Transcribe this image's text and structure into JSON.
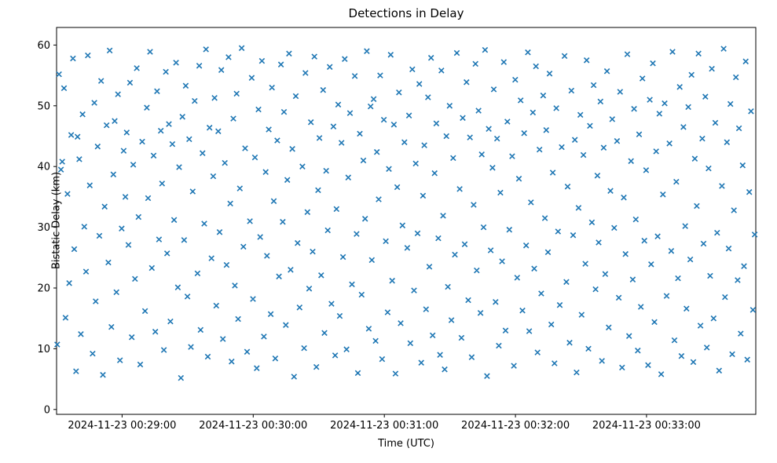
{
  "chart_data": {
    "type": "scatter",
    "title": "Detections in Delay",
    "xlabel": "Time (UTC)",
    "ylabel": "Bistatic Delay (km)",
    "marker": "x",
    "marker_color": "#1f77b4",
    "x_start_time": "2024-11-23 00:28:30",
    "x_range_s": [
      0,
      320
    ],
    "x_tick_offsets_s": [
      30,
      90,
      150,
      210,
      270
    ],
    "x_tick_labels": [
      "2024-11-23 00:29:00",
      "2024-11-23 00:30:00",
      "2024-11-23 00:31:00",
      "2024-11-23 00:32:00",
      "2024-11-23 00:33:00"
    ],
    "ylim": [
      -0.8,
      62.9
    ],
    "yticks": [
      0,
      10,
      20,
      30,
      40,
      50,
      60
    ],
    "points": [
      [
        0.3,
        10.7
      ],
      [
        1.1,
        55.2
      ],
      [
        2.0,
        39.5
      ],
      [
        2.6,
        40.8
      ],
      [
        3.4,
        52.9
      ],
      [
        4.1,
        15.1
      ],
      [
        5.0,
        35.5
      ],
      [
        5.8,
        20.8
      ],
      [
        6.7,
        45.2
      ],
      [
        7.5,
        57.8
      ],
      [
        8.1,
        26.4
      ],
      [
        8.9,
        6.3
      ],
      [
        9.6,
        44.9
      ],
      [
        10.4,
        41.2
      ],
      [
        11.1,
        12.4
      ],
      [
        11.9,
        48.6
      ],
      [
        12.7,
        30.1
      ],
      [
        13.5,
        22.7
      ],
      [
        14.3,
        58.3
      ],
      [
        15.2,
        36.9
      ],
      [
        16.5,
        9.2
      ],
      [
        17.3,
        50.5
      ],
      [
        17.9,
        17.8
      ],
      [
        18.8,
        43.3
      ],
      [
        19.6,
        28.6
      ],
      [
        20.4,
        54.1
      ],
      [
        21.2,
        5.7
      ],
      [
        22.0,
        33.4
      ],
      [
        22.9,
        46.8
      ],
      [
        23.7,
        24.2
      ],
      [
        24.3,
        59.1
      ],
      [
        25.1,
        13.6
      ],
      [
        26.0,
        38.7
      ],
      [
        26.6,
        47.5
      ],
      [
        27.4,
        19.3
      ],
      [
        28.1,
        51.9
      ],
      [
        29.0,
        8.1
      ],
      [
        29.8,
        29.8
      ],
      [
        30.7,
        42.6
      ],
      [
        31.5,
        35.0
      ],
      [
        32.1,
        45.6
      ],
      [
        32.9,
        27.1
      ],
      [
        33.6,
        53.8
      ],
      [
        34.4,
        11.9
      ],
      [
        35.1,
        40.3
      ],
      [
        35.9,
        21.5
      ],
      [
        36.7,
        56.2
      ],
      [
        37.5,
        31.7
      ],
      [
        38.3,
        7.4
      ],
      [
        39.2,
        44.1
      ],
      [
        40.5,
        16.2
      ],
      [
        41.3,
        49.7
      ],
      [
        41.9,
        34.8
      ],
      [
        42.8,
        58.9
      ],
      [
        43.6,
        23.3
      ],
      [
        44.4,
        41.8
      ],
      [
        45.2,
        12.8
      ],
      [
        46.0,
        52.4
      ],
      [
        46.9,
        28.0
      ],
      [
        47.7,
        45.9
      ],
      [
        48.3,
        37.2
      ],
      [
        49.1,
        9.8
      ],
      [
        50.0,
        55.6
      ],
      [
        50.6,
        25.7
      ],
      [
        51.4,
        47.0
      ],
      [
        52.1,
        14.5
      ],
      [
        53.0,
        43.7
      ],
      [
        53.8,
        31.2
      ],
      [
        54.7,
        57.1
      ],
      [
        55.5,
        20.1
      ],
      [
        56.1,
        39.9
      ],
      [
        56.9,
        5.2
      ],
      [
        57.6,
        48.2
      ],
      [
        58.4,
        27.9
      ],
      [
        59.1,
        53.3
      ],
      [
        59.9,
        18.6
      ],
      [
        60.7,
        44.5
      ],
      [
        61.5,
        10.3
      ],
      [
        62.3,
        35.9
      ],
      [
        63.2,
        50.8
      ],
      [
        64.5,
        22.4
      ],
      [
        65.3,
        56.6
      ],
      [
        65.9,
        13.1
      ],
      [
        66.8,
        42.2
      ],
      [
        67.6,
        30.6
      ],
      [
        68.4,
        59.3
      ],
      [
        69.2,
        8.7
      ],
      [
        70.0,
        46.4
      ],
      [
        70.9,
        24.9
      ],
      [
        71.7,
        38.4
      ],
      [
        72.3,
        51.3
      ],
      [
        73.1,
        17.1
      ],
      [
        74.0,
        45.8
      ],
      [
        74.6,
        29.2
      ],
      [
        75.4,
        55.9
      ],
      [
        76.1,
        11.6
      ],
      [
        77.0,
        40.6
      ],
      [
        77.8,
        23.8
      ],
      [
        78.7,
        58.0
      ],
      [
        79.5,
        33.9
      ],
      [
        80.1,
        7.9
      ],
      [
        80.9,
        47.9
      ],
      [
        81.6,
        20.4
      ],
      [
        82.4,
        52.0
      ],
      [
        83.1,
        14.9
      ],
      [
        83.9,
        36.4
      ],
      [
        84.7,
        59.5
      ],
      [
        85.5,
        26.8
      ],
      [
        86.3,
        43.0
      ],
      [
        87.2,
        9.5
      ],
      [
        88.5,
        31.0
      ],
      [
        89.3,
        54.6
      ],
      [
        89.9,
        18.2
      ],
      [
        90.8,
        41.5
      ],
      [
        91.6,
        6.8
      ],
      [
        92.4,
        49.4
      ],
      [
        93.2,
        28.4
      ],
      [
        94.0,
        57.4
      ],
      [
        94.9,
        12.0
      ],
      [
        95.7,
        39.1
      ],
      [
        96.3,
        25.3
      ],
      [
        97.1,
        46.1
      ],
      [
        98.0,
        15.7
      ],
      [
        98.6,
        53.0
      ],
      [
        99.4,
        34.3
      ],
      [
        100.1,
        8.4
      ],
      [
        101.0,
        44.3
      ],
      [
        101.8,
        21.9
      ],
      [
        102.7,
        56.8
      ],
      [
        103.5,
        30.9
      ],
      [
        104.1,
        49.0
      ],
      [
        104.9,
        13.9
      ],
      [
        105.6,
        37.8
      ],
      [
        106.4,
        58.6
      ],
      [
        107.1,
        23.0
      ],
      [
        107.9,
        42.9
      ],
      [
        108.7,
        5.4
      ],
      [
        109.5,
        51.6
      ],
      [
        110.3,
        27.4
      ],
      [
        111.2,
        16.8
      ],
      [
        112.5,
        40.0
      ],
      [
        113.3,
        10.1
      ],
      [
        113.9,
        55.4
      ],
      [
        114.8,
        32.5
      ],
      [
        115.6,
        19.9
      ],
      [
        116.4,
        47.3
      ],
      [
        117.2,
        26.0
      ],
      [
        118.0,
        58.1
      ],
      [
        118.9,
        7.0
      ],
      [
        119.7,
        36.1
      ],
      [
        120.3,
        44.7
      ],
      [
        121.1,
        22.1
      ],
      [
        122.0,
        52.6
      ],
      [
        122.6,
        12.6
      ],
      [
        123.4,
        39.3
      ],
      [
        124.1,
        29.5
      ],
      [
        125.0,
        56.4
      ],
      [
        125.8,
        17.4
      ],
      [
        126.7,
        46.6
      ],
      [
        127.5,
        8.9
      ],
      [
        128.1,
        33.0
      ],
      [
        128.9,
        50.2
      ],
      [
        129.6,
        15.4
      ],
      [
        130.4,
        43.9
      ],
      [
        131.1,
        25.1
      ],
      [
        131.9,
        57.7
      ],
      [
        132.7,
        9.9
      ],
      [
        133.5,
        38.2
      ],
      [
        134.3,
        48.8
      ],
      [
        135.2,
        20.6
      ],
      [
        136.5,
        54.9
      ],
      [
        137.3,
        28.9
      ],
      [
        137.9,
        6.0
      ],
      [
        138.8,
        45.4
      ],
      [
        139.6,
        18.9
      ],
      [
        140.4,
        41.0
      ],
      [
        141.2,
        31.4
      ],
      [
        142.0,
        59.0
      ],
      [
        142.9,
        13.3
      ],
      [
        143.7,
        49.9
      ],
      [
        144.3,
        24.6
      ],
      [
        145.1,
        51.1
      ],
      [
        146.0,
        11.3
      ],
      [
        146.6,
        42.4
      ],
      [
        147.4,
        34.6
      ],
      [
        148.1,
        55.0
      ],
      [
        149.0,
        8.3
      ],
      [
        149.8,
        47.7
      ],
      [
        150.7,
        27.7
      ],
      [
        151.5,
        16.0
      ],
      [
        152.1,
        39.6
      ],
      [
        152.9,
        58.4
      ],
      [
        153.6,
        21.2
      ],
      [
        154.4,
        46.9
      ],
      [
        155.1,
        5.9
      ],
      [
        155.9,
        36.6
      ],
      [
        156.7,
        52.2
      ],
      [
        157.5,
        14.2
      ],
      [
        158.3,
        30.3
      ],
      [
        159.2,
        44.0
      ],
      [
        160.5,
        26.6
      ],
      [
        161.3,
        48.4
      ],
      [
        161.9,
        10.9
      ],
      [
        162.8,
        56.0
      ],
      [
        163.6,
        19.6
      ],
      [
        164.4,
        40.5
      ],
      [
        165.2,
        29.0
      ],
      [
        166.0,
        53.6
      ],
      [
        166.9,
        7.7
      ],
      [
        167.7,
        35.2
      ],
      [
        168.3,
        43.5
      ],
      [
        169.1,
        16.5
      ],
      [
        170.0,
        51.4
      ],
      [
        170.6,
        23.5
      ],
      [
        171.4,
        57.9
      ],
      [
        172.1,
        12.2
      ],
      [
        173.0,
        38.9
      ],
      [
        173.8,
        47.1
      ],
      [
        174.7,
        28.2
      ],
      [
        175.5,
        9.0
      ],
      [
        176.1,
        55.8
      ],
      [
        176.9,
        31.9
      ],
      [
        177.6,
        6.6
      ],
      [
        178.4,
        45.0
      ],
      [
        179.1,
        20.2
      ],
      [
        179.9,
        50.0
      ],
      [
        180.7,
        14.7
      ],
      [
        181.5,
        41.4
      ],
      [
        182.3,
        25.5
      ],
      [
        183.2,
        58.7
      ],
      [
        184.5,
        36.3
      ],
      [
        185.3,
        11.8
      ],
      [
        185.9,
        48.0
      ],
      [
        186.8,
        27.2
      ],
      [
        187.6,
        53.9
      ],
      [
        188.4,
        18.0
      ],
      [
        189.2,
        44.8
      ],
      [
        190.0,
        8.6
      ],
      [
        190.9,
        33.7
      ],
      [
        191.7,
        56.9
      ],
      [
        192.3,
        22.9
      ],
      [
        193.1,
        49.2
      ],
      [
        194.0,
        15.9
      ],
      [
        194.6,
        42.0
      ],
      [
        195.4,
        30.0
      ],
      [
        196.1,
        59.2
      ],
      [
        197.0,
        5.5
      ],
      [
        197.8,
        46.2
      ],
      [
        198.7,
        26.2
      ],
      [
        199.5,
        39.8
      ],
      [
        200.1,
        52.7
      ],
      [
        200.9,
        17.7
      ],
      [
        201.6,
        44.6
      ],
      [
        202.4,
        10.5
      ],
      [
        203.1,
        35.7
      ],
      [
        203.9,
        24.4
      ],
      [
        204.7,
        57.2
      ],
      [
        205.5,
        13.0
      ],
      [
        206.3,
        47.4
      ],
      [
        207.2,
        29.6
      ],
      [
        208.5,
        41.7
      ],
      [
        209.3,
        7.2
      ],
      [
        209.9,
        54.3
      ],
      [
        210.8,
        21.7
      ],
      [
        211.6,
        38.0
      ],
      [
        212.4,
        50.9
      ],
      [
        213.2,
        16.3
      ],
      [
        214.0,
        45.5
      ],
      [
        214.9,
        27.0
      ],
      [
        215.7,
        58.8
      ],
      [
        216.3,
        12.9
      ],
      [
        217.1,
        34.1
      ],
      [
        218.0,
        48.9
      ],
      [
        218.6,
        23.2
      ],
      [
        219.4,
        56.5
      ],
      [
        220.1,
        9.4
      ],
      [
        221.0,
        42.8
      ],
      [
        221.8,
        19.1
      ],
      [
        222.7,
        51.7
      ],
      [
        223.5,
        31.5
      ],
      [
        224.1,
        46.0
      ],
      [
        224.9,
        25.9
      ],
      [
        225.6,
        55.3
      ],
      [
        226.4,
        14.0
      ],
      [
        227.1,
        39.0
      ],
      [
        227.9,
        7.6
      ],
      [
        228.7,
        49.6
      ],
      [
        229.5,
        29.3
      ],
      [
        230.3,
        17.2
      ],
      [
        231.2,
        43.2
      ],
      [
        232.5,
        58.2
      ],
      [
        233.3,
        21.0
      ],
      [
        233.9,
        36.7
      ],
      [
        234.8,
        11.0
      ],
      [
        235.6,
        52.5
      ],
      [
        236.4,
        28.7
      ],
      [
        237.2,
        44.4
      ],
      [
        238.0,
        6.1
      ],
      [
        238.9,
        33.2
      ],
      [
        239.7,
        48.5
      ],
      [
        240.3,
        15.6
      ],
      [
        241.1,
        41.9
      ],
      [
        242.0,
        24.0
      ],
      [
        242.6,
        57.5
      ],
      [
        243.4,
        10.0
      ],
      [
        244.1,
        46.7
      ],
      [
        245.0,
        30.8
      ],
      [
        245.8,
        53.4
      ],
      [
        246.7,
        19.8
      ],
      [
        247.5,
        38.5
      ],
      [
        248.1,
        27.5
      ],
      [
        248.9,
        50.7
      ],
      [
        249.6,
        8.0
      ],
      [
        250.4,
        43.1
      ],
      [
        251.1,
        22.3
      ],
      [
        251.9,
        55.7
      ],
      [
        252.7,
        13.5
      ],
      [
        253.5,
        36.0
      ],
      [
        254.3,
        47.8
      ],
      [
        255.2,
        29.9
      ],
      [
        256.5,
        44.2
      ],
      [
        257.3,
        18.4
      ],
      [
        257.9,
        52.3
      ],
      [
        258.8,
        6.9
      ],
      [
        259.6,
        34.9
      ],
      [
        260.4,
        25.6
      ],
      [
        261.2,
        58.5
      ],
      [
        262.0,
        12.1
      ],
      [
        262.9,
        40.9
      ],
      [
        263.7,
        21.4
      ],
      [
        264.3,
        49.5
      ],
      [
        265.1,
        31.3
      ],
      [
        266.0,
        9.7
      ],
      [
        266.6,
        45.3
      ],
      [
        267.4,
        16.9
      ],
      [
        268.1,
        54.5
      ],
      [
        269.0,
        27.8
      ],
      [
        269.8,
        39.4
      ],
      [
        270.7,
        7.3
      ],
      [
        271.5,
        51.0
      ],
      [
        272.1,
        23.9
      ],
      [
        272.9,
        57.0
      ],
      [
        273.6,
        14.4
      ],
      [
        274.4,
        42.5
      ],
      [
        275.1,
        28.5
      ],
      [
        275.9,
        48.7
      ],
      [
        276.7,
        5.8
      ],
      [
        277.5,
        35.4
      ],
      [
        278.3,
        50.4
      ],
      [
        279.2,
        18.7
      ],
      [
        280.5,
        43.8
      ],
      [
        281.3,
        26.1
      ],
      [
        281.9,
        58.9
      ],
      [
        282.8,
        11.4
      ],
      [
        283.6,
        37.5
      ],
      [
        284.4,
        21.6
      ],
      [
        285.2,
        53.1
      ],
      [
        286.0,
        8.8
      ],
      [
        286.9,
        46.5
      ],
      [
        287.7,
        30.2
      ],
      [
        288.3,
        16.6
      ],
      [
        289.1,
        49.8
      ],
      [
        290.0,
        24.7
      ],
      [
        290.6,
        55.1
      ],
      [
        291.4,
        7.8
      ],
      [
        292.1,
        41.3
      ],
      [
        293.0,
        33.5
      ],
      [
        293.8,
        58.6
      ],
      [
        294.7,
        13.8
      ],
      [
        295.5,
        44.6
      ],
      [
        296.1,
        27.3
      ],
      [
        296.9,
        51.5
      ],
      [
        297.6,
        10.2
      ],
      [
        298.4,
        39.7
      ],
      [
        299.1,
        22.0
      ],
      [
        299.9,
        56.1
      ],
      [
        300.7,
        15.0
      ],
      [
        301.5,
        47.2
      ],
      [
        302.3,
        29.1
      ],
      [
        303.2,
        6.4
      ],
      [
        304.5,
        36.8
      ],
      [
        305.3,
        59.4
      ],
      [
        305.9,
        18.5
      ],
      [
        306.8,
        44.0
      ],
      [
        307.6,
        26.5
      ],
      [
        308.4,
        50.3
      ],
      [
        309.2,
        9.1
      ],
      [
        310.0,
        32.8
      ],
      [
        310.9,
        54.7
      ],
      [
        311.7,
        21.3
      ],
      [
        312.3,
        46.3
      ],
      [
        313.1,
        12.5
      ],
      [
        314.0,
        40.2
      ],
      [
        314.6,
        23.6
      ],
      [
        315.4,
        57.3
      ],
      [
        316.1,
        8.2
      ],
      [
        317.0,
        35.8
      ],
      [
        317.8,
        49.1
      ],
      [
        318.7,
        16.4
      ],
      [
        319.5,
        28.8
      ]
    ]
  }
}
